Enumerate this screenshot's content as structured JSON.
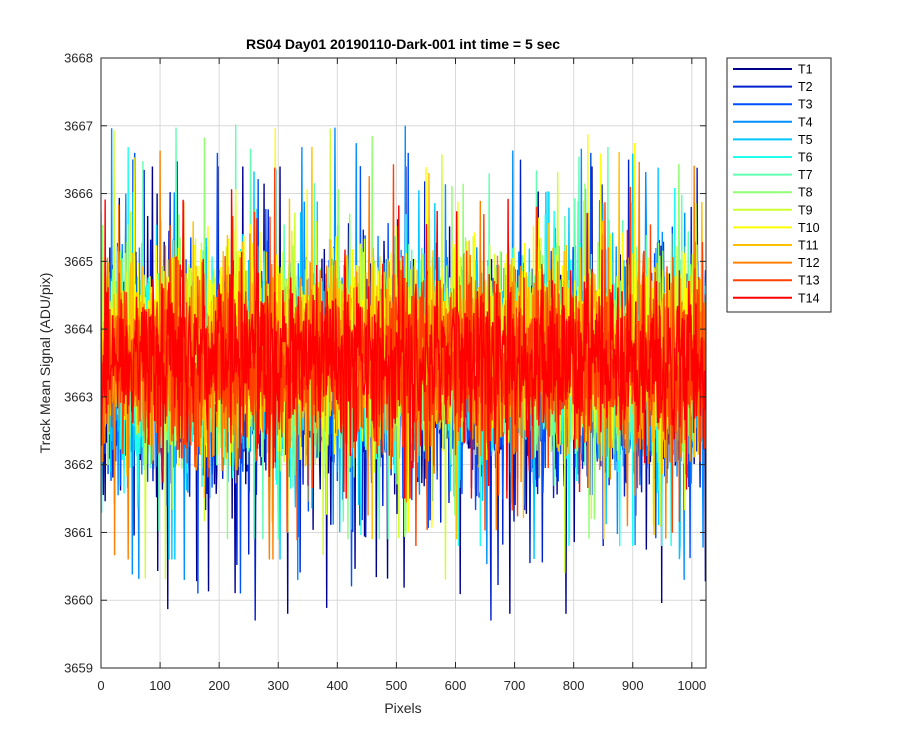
{
  "chart_data": {
    "type": "line",
    "title": "RS04 Day01 20190110-Dark-001 int time = 5 sec",
    "xlabel": "Pixels",
    "ylabel": "Track Mean Signal (ADU/pix)",
    "xlim": [
      0,
      1024
    ],
    "ylim": [
      3659,
      3668
    ],
    "xticks": [
      0,
      100,
      200,
      300,
      400,
      500,
      600,
      700,
      800,
      900,
      1000
    ],
    "yticks": [
      3659,
      3660,
      3661,
      3662,
      3663,
      3664,
      3665,
      3666,
      3667,
      3668
    ],
    "grid": true,
    "legend_position": "outside-top-right",
    "series": [
      {
        "name": "T1",
        "color": "#00008f",
        "mean": 3663.3,
        "sd": 1.0,
        "min": 3659.8,
        "max": 3666.4
      },
      {
        "name": "T2",
        "color": "#0020d0",
        "mean": 3663.2,
        "sd": 1.0,
        "min": 3659.7,
        "max": 3666.5
      },
      {
        "name": "T3",
        "color": "#0050ff",
        "mean": 3663.3,
        "sd": 0.95,
        "min": 3660.1,
        "max": 3666.6
      },
      {
        "name": "T4",
        "color": "#0090ff",
        "mean": 3663.4,
        "sd": 0.95,
        "min": 3660.3,
        "max": 3667.0
      },
      {
        "name": "T5",
        "color": "#00c8ff",
        "mean": 3663.5,
        "sd": 0.9,
        "min": 3660.6,
        "max": 3666.9
      },
      {
        "name": "T6",
        "color": "#20ffef",
        "mean": 3663.5,
        "sd": 0.9,
        "min": 3660.8,
        "max": 3666.8
      },
      {
        "name": "T7",
        "color": "#60ffb0",
        "mean": 3663.6,
        "sd": 0.9,
        "min": 3660.9,
        "max": 3667.2
      },
      {
        "name": "T8",
        "color": "#90ff70",
        "mean": 3663.6,
        "sd": 0.9,
        "min": 3660.9,
        "max": 3667.0
      },
      {
        "name": "T9",
        "color": "#d0ff30",
        "mean": 3663.7,
        "sd": 0.9,
        "min": 3659.5,
        "max": 3667.1
      },
      {
        "name": "T10",
        "color": "#ffff00",
        "mean": 3663.8,
        "sd": 0.85,
        "min": 3661.0,
        "max": 3667.0
      },
      {
        "name": "T11",
        "color": "#ffc000",
        "mean": 3663.6,
        "sd": 0.85,
        "min": 3660.9,
        "max": 3667.5
      },
      {
        "name": "T12",
        "color": "#ff8000",
        "mean": 3663.5,
        "sd": 0.85,
        "min": 3660.6,
        "max": 3667.6
      },
      {
        "name": "T13",
        "color": "#ff4000",
        "mean": 3663.5,
        "sd": 0.8,
        "min": 3659.9,
        "max": 3667.0
      },
      {
        "name": "T14",
        "color": "#ff0000",
        "mean": 3663.6,
        "sd": 0.7,
        "min": 3661.5,
        "max": 3666.3
      }
    ]
  }
}
